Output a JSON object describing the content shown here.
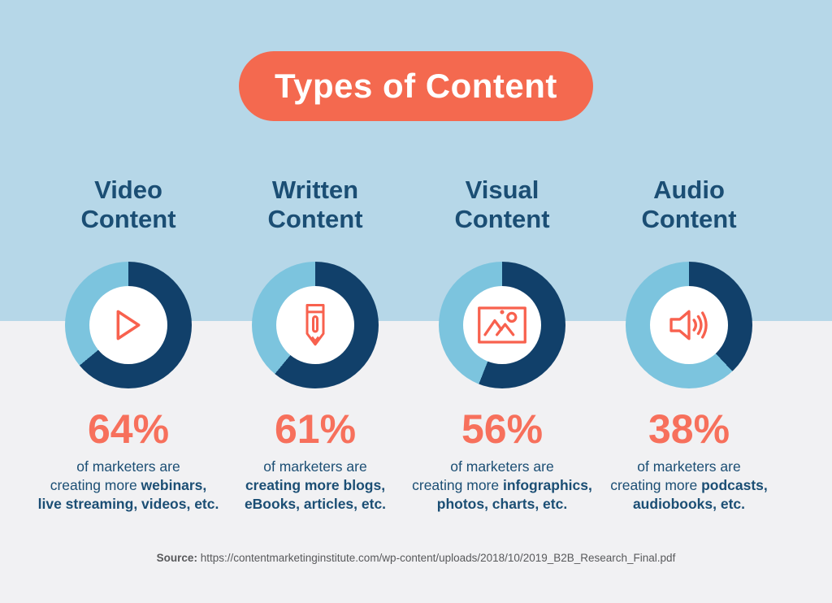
{
  "title": "Types of Content",
  "colors": {
    "bg_top": "#B6D7E8",
    "bg_bottom": "#F1F1F3",
    "accent": "#F4694F",
    "percent": "#F7705C",
    "navy": "#1B4E74",
    "donut_dark": "#11406A",
    "donut_light": "#7CC4DE",
    "icon": "#F8614E",
    "white": "#FFFFFF",
    "source_gray": "#58595B"
  },
  "chart_data": {
    "type": "pie",
    "subtype": "donut-multiples",
    "title": "Types of Content",
    "categories": [
      "Video Content",
      "Written Content",
      "Visual Content",
      "Audio Content"
    ],
    "values": [
      64,
      61,
      56,
      38
    ],
    "value_unit": "%",
    "note": "Each donut shows percent of marketers (dark navy slice, clockwise from top) vs remainder (light blue)"
  },
  "cards": [
    {
      "title": "Video\nContent",
      "percent": 64,
      "percent_label": "64%",
      "icon": "play-icon",
      "desc_lines": [
        [
          {
            "t": "of marketers are",
            "b": false
          }
        ],
        [
          {
            "t": "creating more ",
            "b": false
          },
          {
            "t": "webinars,",
            "b": true
          }
        ],
        [
          {
            "t": "live streaming, videos, etc.",
            "b": true
          }
        ]
      ]
    },
    {
      "title": "Written\nContent",
      "percent": 61,
      "percent_label": "61%",
      "icon": "pencil-icon",
      "desc_lines": [
        [
          {
            "t": "of marketers are",
            "b": false
          }
        ],
        [
          {
            "t": "creating more blogs,",
            "b": true
          }
        ],
        [
          {
            "t": "eBooks, articles, etc.",
            "b": true
          }
        ]
      ]
    },
    {
      "title": "Visual\nContent",
      "percent": 56,
      "percent_label": "56%",
      "icon": "image-icon",
      "desc_lines": [
        [
          {
            "t": "of marketers are",
            "b": false
          }
        ],
        [
          {
            "t": "creating more ",
            "b": false
          },
          {
            "t": "infographics,",
            "b": true
          }
        ],
        [
          {
            "t": "photos, charts, etc.",
            "b": true
          }
        ]
      ]
    },
    {
      "title": "Audio\nContent",
      "percent": 38,
      "percent_label": "38%",
      "icon": "speaker-icon",
      "desc_lines": [
        [
          {
            "t": "of marketers are",
            "b": false
          }
        ],
        [
          {
            "t": "creating more ",
            "b": false
          },
          {
            "t": "podcasts,",
            "b": true
          }
        ],
        [
          {
            "t": "audiobooks, etc.",
            "b": true
          }
        ]
      ]
    }
  ],
  "source": {
    "label": "Source:",
    "url": "https://contentmarketinginstitute.com/wp-content/uploads/2018/10/2019_B2B_Research_Final.pdf"
  }
}
